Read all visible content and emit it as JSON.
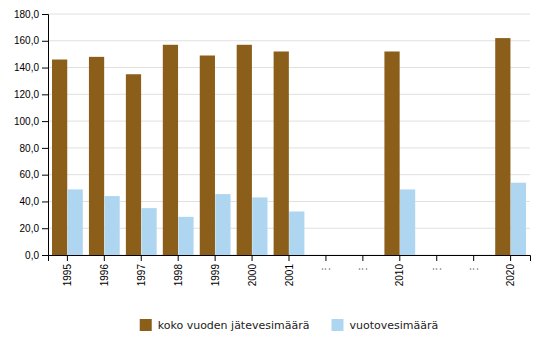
{
  "chart_data": {
    "type": "bar",
    "categories": [
      "1995",
      "1996",
      "1997",
      "1998",
      "1999",
      "2000",
      "2001",
      "⋮",
      "⋮",
      "2010",
      "⋮",
      "⋮",
      "2020"
    ],
    "series": [
      {
        "name": "koko vuoden jätevesimäärä",
        "color": "#8B5E1A",
        "values": [
          146.0,
          148.0,
          135.0,
          157.0,
          149.0,
          157.0,
          152.0,
          null,
          null,
          152.0,
          null,
          null,
          162.0
        ]
      },
      {
        "name": "vuotovesimäärä",
        "color": "#AED6F1",
        "values": [
          49.0,
          44.0,
          35.0,
          28.5,
          45.5,
          43.0,
          32.5,
          null,
          null,
          49.0,
          null,
          null,
          54.0
        ]
      }
    ],
    "ylim": [
      0,
      180
    ],
    "yticks": [
      {
        "value": 0,
        "label": "0,0"
      },
      {
        "value": 20,
        "label": "20,0"
      },
      {
        "value": 40,
        "label": "40,0"
      },
      {
        "value": 60,
        "label": "60,0"
      },
      {
        "value": 80,
        "label": "80,0"
      },
      {
        "value": 100,
        "label": "100,0"
      },
      {
        "value": 120,
        "label": "120,0"
      },
      {
        "value": 140,
        "label": "140,0"
      },
      {
        "value": 160,
        "label": "160,0"
      },
      {
        "value": 180,
        "label": "180,0"
      }
    ],
    "grid": true,
    "legend": "bottom"
  }
}
